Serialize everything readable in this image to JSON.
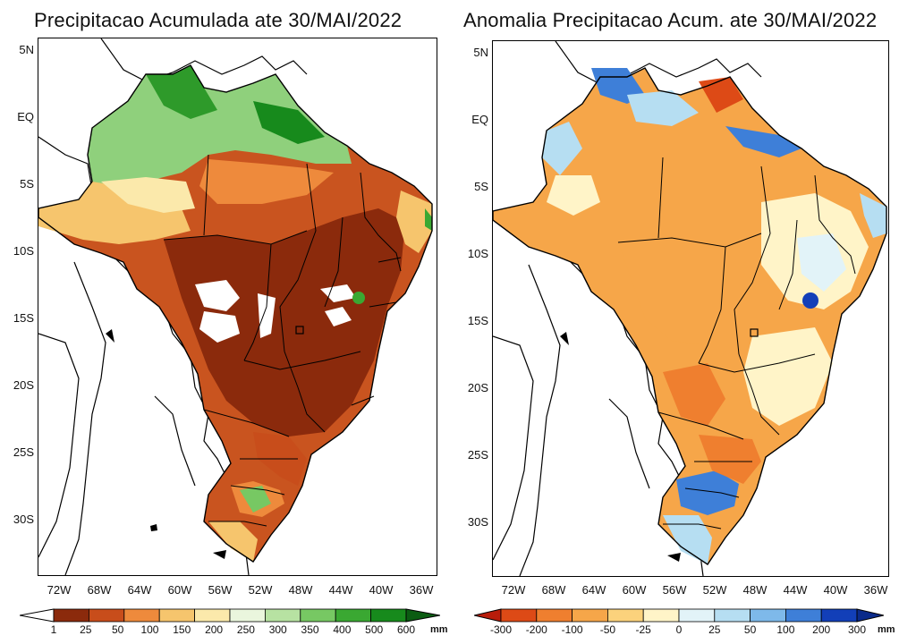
{
  "left_panel": {
    "title": "Precipitacao Acumulada ate 30/MAI/2022",
    "lat_ticks": [
      "5N",
      "EQ",
      "5S",
      "10S",
      "15S",
      "20S",
      "25S",
      "30S"
    ],
    "lon_ticks": [
      "72W",
      "68W",
      "64W",
      "60W",
      "56W",
      "52W",
      "48W",
      "44W",
      "40W",
      "36W"
    ],
    "colorbar": {
      "labels": [
        "1",
        "25",
        "50",
        "100",
        "150",
        "200",
        "250",
        "300",
        "350",
        "400",
        "500",
        "600"
      ],
      "colors": [
        "#ffffff",
        "#8b2a0c",
        "#c84d1b",
        "#ee8a3c",
        "#f6c56d",
        "#fbe9ab",
        "#eaf6dd",
        "#b7e2a2",
        "#77c863",
        "#3aa832",
        "#178a1c",
        "#0b5c12"
      ],
      "unit": "mm"
    }
  },
  "right_panel": {
    "title": "Anomalia Precipitacao Acum. ate 30/MAI/2022",
    "lat_ticks": [
      "5N",
      "EQ",
      "5S",
      "10S",
      "15S",
      "20S",
      "25S",
      "30S"
    ],
    "lon_ticks": [
      "72W",
      "68W",
      "64W",
      "60W",
      "56W",
      "52W",
      "48W",
      "44W",
      "40W",
      "36W"
    ],
    "colorbar": {
      "labels": [
        "-300",
        "-200",
        "-100",
        "-50",
        "-25",
        "0",
        "25",
        "50",
        "100",
        "200",
        "300"
      ],
      "colors": [
        "#b81d0b",
        "#dd4a16",
        "#ef7f2f",
        "#f6a649",
        "#fbd27c",
        "#fff4c8",
        "#e2f3f8",
        "#b6def2",
        "#7eb9ea",
        "#3e7fd8",
        "#123fb8",
        "#0a2a8a"
      ],
      "unit": "mm"
    }
  }
}
